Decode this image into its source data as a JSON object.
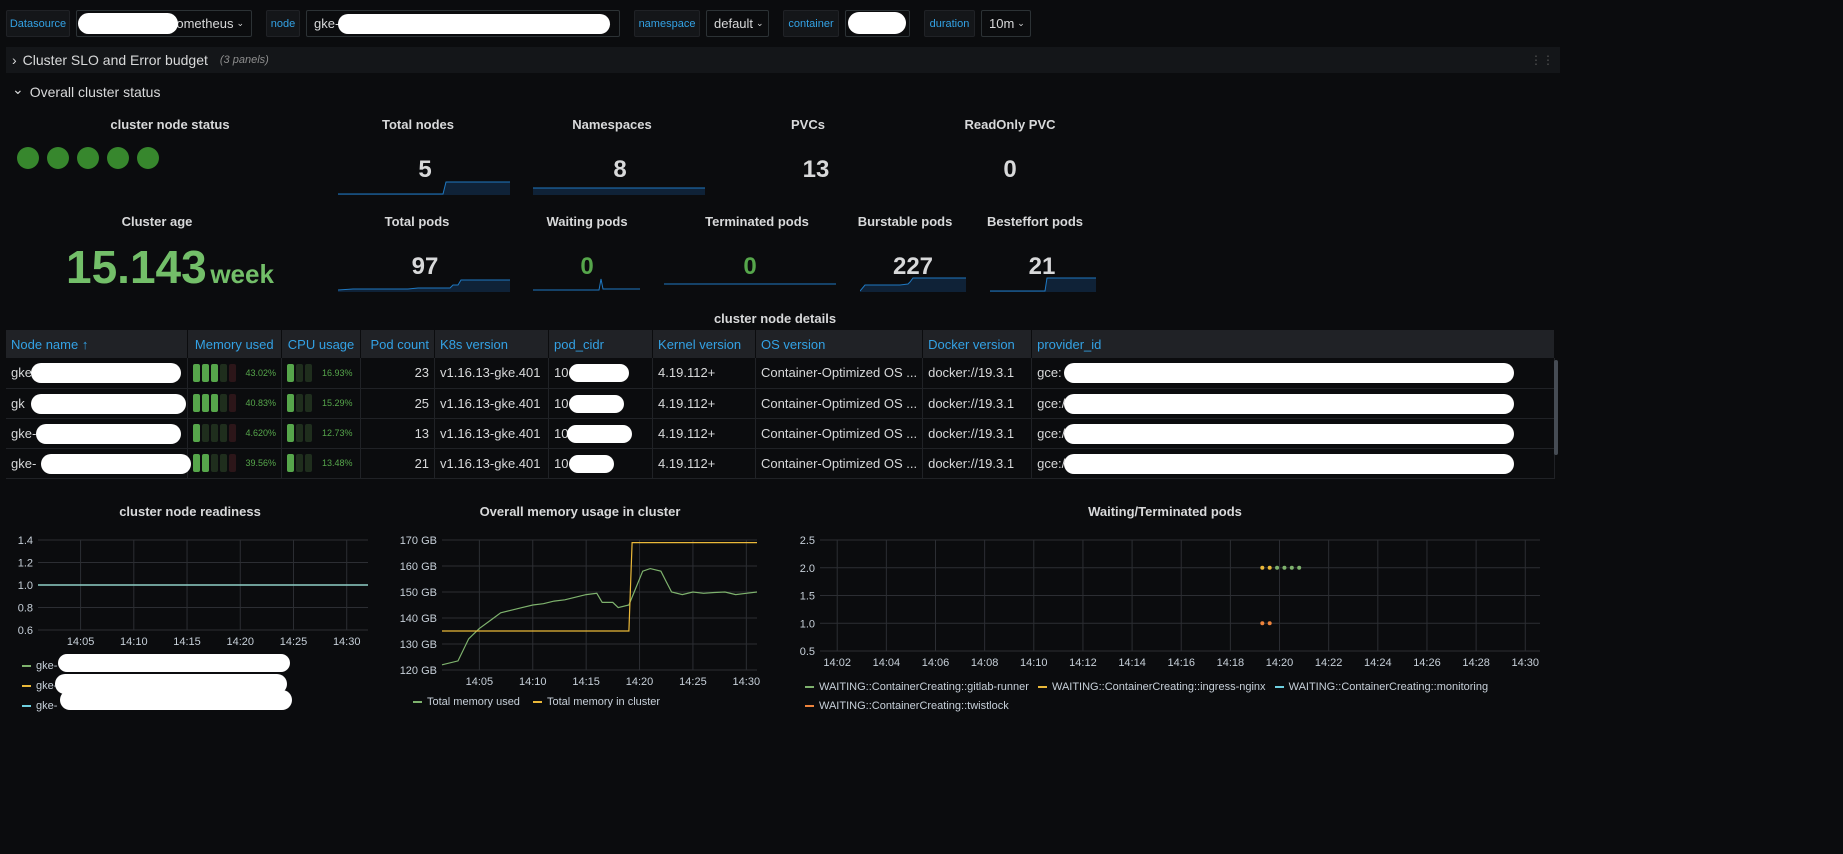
{
  "variables": [
    {
      "label": "Datasource",
      "value": "Prometheus"
    },
    {
      "label": "node",
      "value": "gke-"
    },
    {
      "label": "namespace",
      "value": "default"
    },
    {
      "label": "container",
      "value": ""
    },
    {
      "label": "duration",
      "value": "10m"
    }
  ],
  "rows": {
    "slo": {
      "title": "Cluster SLO and Error budget",
      "count": "(3 panels)",
      "chevron": "›"
    },
    "overall": {
      "title": "Overall cluster status",
      "chevron": "⌄"
    }
  },
  "stats": {
    "node_status": {
      "title": "cluster node status",
      "dots": 5,
      "color": "#37872d"
    },
    "total_nodes": {
      "title": "Total nodes",
      "value": "5"
    },
    "namespaces": {
      "title": "Namespaces",
      "value": "8"
    },
    "pvcs": {
      "title": "PVCs",
      "value": "13"
    },
    "readonly_pvc": {
      "title": "ReadOnly PVC",
      "value": "0"
    },
    "cluster_age": {
      "title": "Cluster age",
      "value": "15.143",
      "unit": "week"
    },
    "total_pods": {
      "title": "Total pods",
      "value": "97"
    },
    "waiting_pods": {
      "title": "Waiting pods",
      "value": "0"
    },
    "terminated_pods": {
      "title": "Terminated pods",
      "value": "0"
    },
    "burstable_pods": {
      "title": "Burstable pods",
      "value": "227"
    },
    "besteffort_pods": {
      "title": "Besteffort pods",
      "value": "21"
    }
  },
  "table": {
    "title": "cluster node details",
    "columns": [
      "Node name ↑",
      "Memory used",
      "CPU usage",
      "Pod count",
      "K8s version",
      "pod_cidr",
      "Kernel version",
      "OS version",
      "Docker version",
      "provider_id"
    ],
    "rows": [
      {
        "node": "gke-",
        "mem": "43.02%",
        "mem_frac": 0.4302,
        "cpu": "16.93%",
        "cpu_frac": 0.1693,
        "pods": "23",
        "k8s": "v1.16.13-gke.401",
        "cidr": "10",
        "kernel": "4.19.112+",
        "os": "Container-Optimized OS ...",
        "docker": "docker://19.3.1",
        "provider": "gce:"
      },
      {
        "node": "gk",
        "mem": "40.83%",
        "mem_frac": 0.4083,
        "cpu": "15.29%",
        "cpu_frac": 0.1529,
        "pods": "25",
        "k8s": "v1.16.13-gke.401",
        "cidr": "10",
        "kernel": "4.19.112+",
        "os": "Container-Optimized OS ...",
        "docker": "docker://19.3.1",
        "provider": "gce:/"
      },
      {
        "node": "gke-",
        "mem": "4.620%",
        "mem_frac": 0.0462,
        "cpu": "12.73%",
        "cpu_frac": 0.1273,
        "pods": "13",
        "k8s": "v1.16.13-gke.401",
        "cidr": "10",
        "kernel": "4.19.112+",
        "os": "Container-Optimized OS ...",
        "docker": "docker://19.3.1",
        "provider": "gce:/"
      },
      {
        "node": "gke-",
        "mem": "39.56%",
        "mem_frac": 0.3956,
        "cpu": "13.48%",
        "cpu_frac": 0.1348,
        "pods": "21",
        "k8s": "v1.16.13-gke.401",
        "cidr": "10",
        "kernel": "4.19.112+",
        "os": "Container-Optimized OS ...",
        "docker": "docker://19.3.1",
        "provider": "gce:/"
      }
    ]
  },
  "chart_data": [
    {
      "type": "line",
      "title": "cluster node readiness",
      "xlim": [
        "14:01",
        "14:32"
      ],
      "ylim": [
        0.6,
        1.4
      ],
      "yticks": [
        "0.6",
        "0.8",
        "1.0",
        "1.2",
        "1.4"
      ],
      "xticks": [
        "14:05",
        "14:10",
        "14:15",
        "14:20",
        "14:25",
        "14:30"
      ],
      "series": [
        {
          "name": "gke-",
          "color": "#ef843c",
          "x": [
            "14:01",
            "14:32"
          ],
          "y": [
            1,
            1
          ]
        },
        {
          "name": "gke-",
          "color": "#eab839",
          "x": [
            "14:01",
            "14:32"
          ],
          "y": [
            1,
            1
          ]
        },
        {
          "name": "gke-",
          "color": "#6ed0e0",
          "x": [
            "14:01",
            "14:32"
          ],
          "y": [
            1,
            1
          ]
        }
      ]
    },
    {
      "type": "line",
      "title": "Overall memory usage in cluster",
      "xlim": [
        "14:01.5",
        "14:31"
      ],
      "ylim": [
        120,
        170
      ],
      "yunit": "GB",
      "yticks": [
        "120 GB",
        "130 GB",
        "140 GB",
        "150 GB",
        "160 GB",
        "170 GB"
      ],
      "xticks": [
        "14:05",
        "14:10",
        "14:15",
        "14:20",
        "14:25",
        "14:30"
      ],
      "series": [
        {
          "name": "Total memory used",
          "color": "#7eb26d",
          "x": [
            "14:01.5",
            "14:03",
            "14:04",
            "14:05",
            "14:06",
            "14:07",
            "14:08",
            "14:09",
            "14:10",
            "14:11",
            "14:12",
            "14:13",
            "14:14",
            "14:15",
            "14:16",
            "14:16.5",
            "14:17.5",
            "14:18",
            "14:19",
            "14:19.5",
            "14:20.3",
            "14:21",
            "14:22",
            "14:22.5",
            "14:23",
            "14:24",
            "14:25",
            "14:26",
            "14:27",
            "14:28",
            "14:29",
            "14:30",
            "14:31"
          ],
          "y": [
            122,
            123.5,
            132,
            136,
            139,
            142,
            143,
            144,
            145,
            145.5,
            146.5,
            147,
            148,
            149,
            149.5,
            146,
            146,
            144,
            145,
            150,
            158,
            159,
            158,
            154,
            150,
            149,
            150,
            149.5,
            149.8,
            150,
            149,
            149.5,
            150
          ]
        },
        {
          "name": "Total memory in cluster",
          "color": "#eab839",
          "x": [
            "14:01.5",
            "14:19",
            "14:19.3",
            "14:31"
          ],
          "y": [
            135,
            135,
            169,
            169
          ]
        }
      ]
    },
    {
      "type": "scatter",
      "title": "Waiting/Terminated pods",
      "xlim": [
        "14:01.3",
        "14:30.6"
      ],
      "ylim": [
        0.5,
        2.5
      ],
      "yticks": [
        "0.5",
        "1.0",
        "1.5",
        "2.0",
        "2.5"
      ],
      "xticks": [
        "14:02",
        "14:04",
        "14:06",
        "14:08",
        "14:10",
        "14:12",
        "14:14",
        "14:16",
        "14:18",
        "14:20",
        "14:22",
        "14:24",
        "14:26",
        "14:28",
        "14:30"
      ],
      "series": [
        {
          "name": "WAITING::ContainerCreating::gitlab-runner",
          "color": "#7eb26d",
          "x": [
            "14:19.9",
            "14:20.2",
            "14:20.5",
            "14:20.8"
          ],
          "y": [
            2,
            2,
            2,
            2
          ]
        },
        {
          "name": "WAITING::ContainerCreating::ingress-nginx",
          "color": "#eab839",
          "x": [
            "14:19.3",
            "14:19.6"
          ],
          "y": [
            2,
            2
          ]
        },
        {
          "name": "WAITING::ContainerCreating::monitoring",
          "color": "#6ed0e0",
          "x": [],
          "y": []
        },
        {
          "name": "WAITING::ContainerCreating::twistlock",
          "color": "#ef843c",
          "x": [
            "14:19.3",
            "14:19.6"
          ],
          "y": [
            1,
            1
          ]
        }
      ]
    }
  ]
}
